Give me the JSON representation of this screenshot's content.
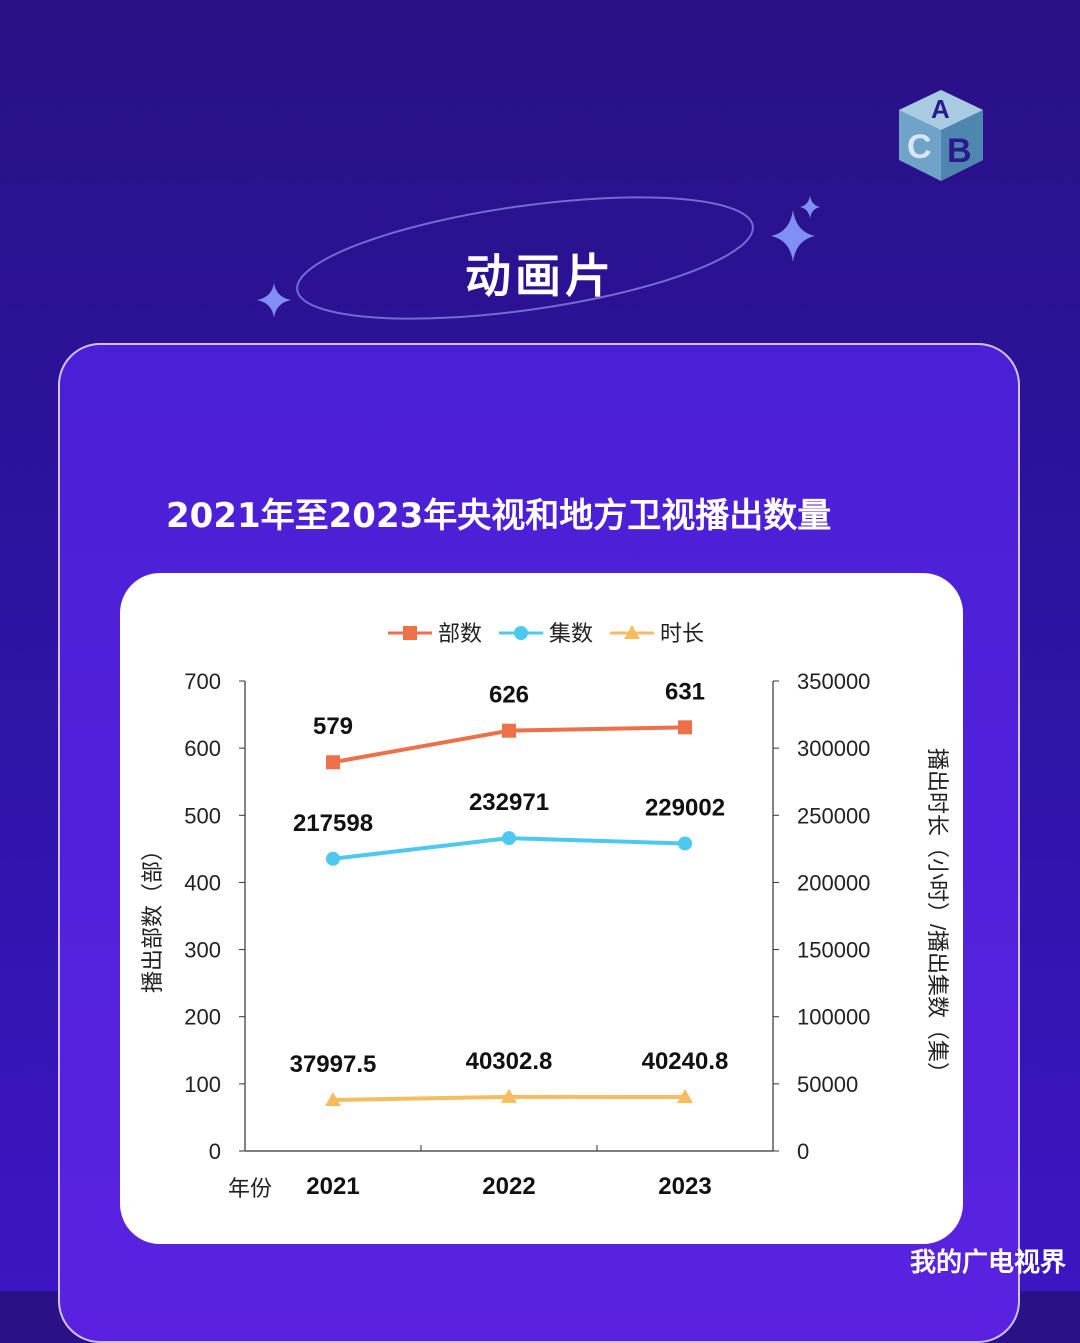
{
  "section": {
    "title": "动画片"
  },
  "watermark": "我的广电视界",
  "colors": {
    "series1": "#ee7048",
    "series2": "#4dc8f0",
    "series3": "#f6bd60"
  },
  "chart_data": {
    "type": "line",
    "title": "2021年至2023年央视和地方卫视播出数量",
    "xlabel": "年份",
    "ylabel": "播出部数（部）",
    "y2label": "播出时长（小时）/播出集数（集）",
    "categories": [
      "2021",
      "2022",
      "2023"
    ],
    "ylim": [
      0,
      700
    ],
    "y2lim": [
      0,
      350000
    ],
    "yticks": [
      0,
      100,
      200,
      300,
      400,
      500,
      600,
      700
    ],
    "y2ticks": [
      0,
      50000,
      100000,
      150000,
      200000,
      250000,
      300000,
      350000
    ],
    "legend_position": "top",
    "grid": false,
    "series": [
      {
        "name": "部数",
        "axis": "left",
        "marker": "square",
        "values": [
          579,
          626,
          631
        ],
        "labels": [
          "579",
          "626",
          "631"
        ]
      },
      {
        "name": "集数",
        "axis": "right",
        "marker": "circle",
        "values": [
          217598,
          232971,
          229002
        ],
        "labels": [
          "217598",
          "232971",
          "229002"
        ]
      },
      {
        "name": "时长",
        "axis": "right",
        "marker": "triangle",
        "values": [
          37997.5,
          40302.8,
          40240.8
        ],
        "labels": [
          "37997.5",
          "40302.8",
          "40240.8"
        ]
      }
    ]
  }
}
